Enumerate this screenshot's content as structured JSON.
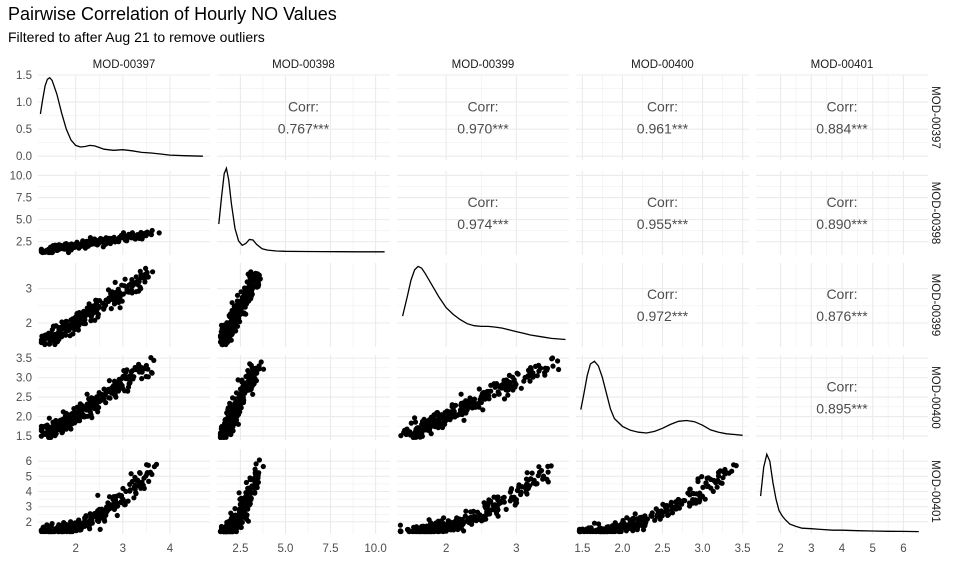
{
  "title": "Pairwise Correlation of Hourly NO Values",
  "subtitle": "Filtered to after Aug 21 to remove outliers",
  "chart_data": {
    "type": "scatter",
    "layout": "pairs-matrix",
    "variables": [
      "MOD-00397",
      "MOD-00398",
      "MOD-00399",
      "MOD-00400",
      "MOD-00401"
    ],
    "grid": true,
    "point_color": "#000000",
    "line_color": "#000000",
    "grid_color": "#ebebeb",
    "text_color": "#4d4d4d",
    "x_axes": [
      {
        "range": [
          1.2,
          4.85
        ],
        "ticks": [
          2,
          3,
          4
        ],
        "tick_labels": [
          "2",
          "3",
          "4"
        ]
      },
      {
        "range": [
          1.2,
          10.8
        ],
        "ticks": [
          2.5,
          5,
          7.5,
          10
        ],
        "tick_labels": [
          "2.5",
          "5.0",
          "7.5",
          "10.0"
        ]
      },
      {
        "range": [
          1.3,
          3.75
        ],
        "ticks": [
          2,
          3
        ],
        "tick_labels": [
          "2",
          "3"
        ]
      },
      {
        "range": [
          1.42,
          3.58
        ],
        "ticks": [
          1.5,
          2.0,
          2.5,
          3.0,
          3.5
        ],
        "tick_labels": [
          "1.5",
          "2.0",
          "2.5",
          "3.0",
          "3.5"
        ]
      },
      {
        "range": [
          1.2,
          6.8
        ],
        "ticks": [
          2,
          3,
          4,
          5,
          6
        ],
        "tick_labels": [
          "2",
          "3",
          "4",
          "5",
          "6"
        ]
      }
    ],
    "y_axes": [
      {
        "range": [
          -0.07,
          1.5
        ],
        "ticks": [
          0,
          0.5,
          1.0,
          1.5
        ],
        "tick_labels": [
          "0.0",
          "0.5",
          "1.0",
          "1.5"
        ]
      },
      {
        "range": [
          1.0,
          10.5
        ],
        "ticks": [
          2.5,
          5,
          7.5,
          10
        ],
        "tick_labels": [
          "2.5",
          "5.0",
          "7.5",
          "10.0"
        ]
      },
      {
        "range": [
          1.3,
          3.75
        ],
        "ticks": [
          2,
          3
        ],
        "tick_labels": [
          "2",
          "3"
        ]
      },
      {
        "range": [
          1.4,
          3.58
        ],
        "ticks": [
          1.5,
          2.0,
          2.5,
          3.0,
          3.5
        ],
        "tick_labels": [
          "1.5",
          "2.0",
          "2.5",
          "3.0",
          "3.5"
        ]
      },
      {
        "range": [
          1.2,
          6.8
        ],
        "ticks": [
          2,
          3,
          4,
          5,
          6
        ],
        "tick_labels": [
          "2",
          "3",
          "4",
          "5",
          "6"
        ]
      }
    ],
    "correlations": [
      {
        "row": 0,
        "col": 1,
        "label": "Corr:",
        "value": "0.767***"
      },
      {
        "row": 0,
        "col": 2,
        "label": "Corr:",
        "value": "0.970***"
      },
      {
        "row": 0,
        "col": 3,
        "label": "Corr:",
        "value": "0.961***"
      },
      {
        "row": 0,
        "col": 4,
        "label": "Corr:",
        "value": "0.884***"
      },
      {
        "row": 1,
        "col": 2,
        "label": "Corr:",
        "value": "0.974***"
      },
      {
        "row": 1,
        "col": 3,
        "label": "Corr:",
        "value": "0.955***"
      },
      {
        "row": 1,
        "col": 4,
        "label": "Corr:",
        "value": "0.890***"
      },
      {
        "row": 2,
        "col": 3,
        "label": "Corr:",
        "value": "0.972***"
      },
      {
        "row": 2,
        "col": 4,
        "label": "Corr:",
        "value": "0.876***"
      },
      {
        "row": 3,
        "col": 4,
        "label": "Corr:",
        "value": "0.895***"
      }
    ],
    "densities": [
      {
        "var": 0,
        "points": [
          [
            1.25,
            0.78
          ],
          [
            1.3,
            1.05
          ],
          [
            1.35,
            1.3
          ],
          [
            1.4,
            1.42
          ],
          [
            1.45,
            1.45
          ],
          [
            1.5,
            1.4
          ],
          [
            1.6,
            1.15
          ],
          [
            1.7,
            0.8
          ],
          [
            1.8,
            0.5
          ],
          [
            1.9,
            0.3
          ],
          [
            2.0,
            0.2
          ],
          [
            2.1,
            0.17
          ],
          [
            2.2,
            0.18
          ],
          [
            2.3,
            0.2
          ],
          [
            2.4,
            0.19
          ],
          [
            2.5,
            0.16
          ],
          [
            2.6,
            0.13
          ],
          [
            2.8,
            0.11
          ],
          [
            3.0,
            0.12
          ],
          [
            3.2,
            0.1
          ],
          [
            3.4,
            0.07
          ],
          [
            3.6,
            0.06
          ],
          [
            3.8,
            0.04
          ],
          [
            4.0,
            0.02
          ],
          [
            4.3,
            0.01
          ],
          [
            4.7,
            0.0
          ]
        ]
      },
      {
        "var": 1,
        "points": [
          [
            1.3,
            4.5
          ],
          [
            1.45,
            7.5
          ],
          [
            1.6,
            10.2
          ],
          [
            1.72,
            10.8
          ],
          [
            1.85,
            9.5
          ],
          [
            2.0,
            6.8
          ],
          [
            2.2,
            4.0
          ],
          [
            2.4,
            2.6
          ],
          [
            2.6,
            2.1
          ],
          [
            2.8,
            2.3
          ],
          [
            3.0,
            2.75
          ],
          [
            3.2,
            2.7
          ],
          [
            3.4,
            2.2
          ],
          [
            3.7,
            1.7
          ],
          [
            4.0,
            1.55
          ],
          [
            4.5,
            1.45
          ],
          [
            5.0,
            1.42
          ],
          [
            6.0,
            1.4
          ],
          [
            7.0,
            1.38
          ],
          [
            8.0,
            1.37
          ],
          [
            9.0,
            1.36
          ],
          [
            10.0,
            1.36
          ],
          [
            10.5,
            1.36
          ]
        ]
      },
      {
        "var": 2,
        "points": [
          [
            1.38,
            2.2
          ],
          [
            1.45,
            2.8
          ],
          [
            1.5,
            3.25
          ],
          [
            1.55,
            3.55
          ],
          [
            1.6,
            3.65
          ],
          [
            1.65,
            3.6
          ],
          [
            1.7,
            3.45
          ],
          [
            1.8,
            3.1
          ],
          [
            1.9,
            2.75
          ],
          [
            2.0,
            2.45
          ],
          [
            2.1,
            2.25
          ],
          [
            2.2,
            2.1
          ],
          [
            2.3,
            1.98
          ],
          [
            2.4,
            1.92
          ],
          [
            2.5,
            1.9
          ],
          [
            2.6,
            1.9
          ],
          [
            2.7,
            1.88
          ],
          [
            2.8,
            1.85
          ],
          [
            2.9,
            1.8
          ],
          [
            3.0,
            1.75
          ],
          [
            3.1,
            1.7
          ],
          [
            3.2,
            1.65
          ],
          [
            3.35,
            1.6
          ],
          [
            3.5,
            1.55
          ],
          [
            3.7,
            1.52
          ]
        ]
      },
      {
        "var": 3,
        "points": [
          [
            1.48,
            2.18
          ],
          [
            1.52,
            2.6
          ],
          [
            1.56,
            3.05
          ],
          [
            1.6,
            3.35
          ],
          [
            1.65,
            3.42
          ],
          [
            1.7,
            3.3
          ],
          [
            1.75,
            3.0
          ],
          [
            1.8,
            2.6
          ],
          [
            1.85,
            2.2
          ],
          [
            1.9,
            1.95
          ],
          [
            2.0,
            1.75
          ],
          [
            2.1,
            1.65
          ],
          [
            2.2,
            1.6
          ],
          [
            2.3,
            1.58
          ],
          [
            2.4,
            1.62
          ],
          [
            2.5,
            1.7
          ],
          [
            2.6,
            1.8
          ],
          [
            2.7,
            1.88
          ],
          [
            2.8,
            1.9
          ],
          [
            2.9,
            1.87
          ],
          [
            3.0,
            1.78
          ],
          [
            3.1,
            1.66
          ],
          [
            3.2,
            1.6
          ],
          [
            3.3,
            1.56
          ],
          [
            3.4,
            1.54
          ],
          [
            3.5,
            1.52
          ]
        ]
      },
      {
        "var": 4,
        "points": [
          [
            1.35,
            3.7
          ],
          [
            1.45,
            5.6
          ],
          [
            1.55,
            6.45
          ],
          [
            1.65,
            6.0
          ],
          [
            1.75,
            4.6
          ],
          [
            1.85,
            3.5
          ],
          [
            1.95,
            2.75
          ],
          [
            2.05,
            2.4
          ],
          [
            2.15,
            2.15
          ],
          [
            2.3,
            1.85
          ],
          [
            2.5,
            1.7
          ],
          [
            2.7,
            1.58
          ],
          [
            3.0,
            1.55
          ],
          [
            3.3,
            1.5
          ],
          [
            3.7,
            1.45
          ],
          [
            4.0,
            1.45
          ],
          [
            4.5,
            1.42
          ],
          [
            5.0,
            1.4
          ],
          [
            5.5,
            1.38
          ],
          [
            6.0,
            1.37
          ],
          [
            6.5,
            1.36
          ]
        ]
      }
    ]
  }
}
